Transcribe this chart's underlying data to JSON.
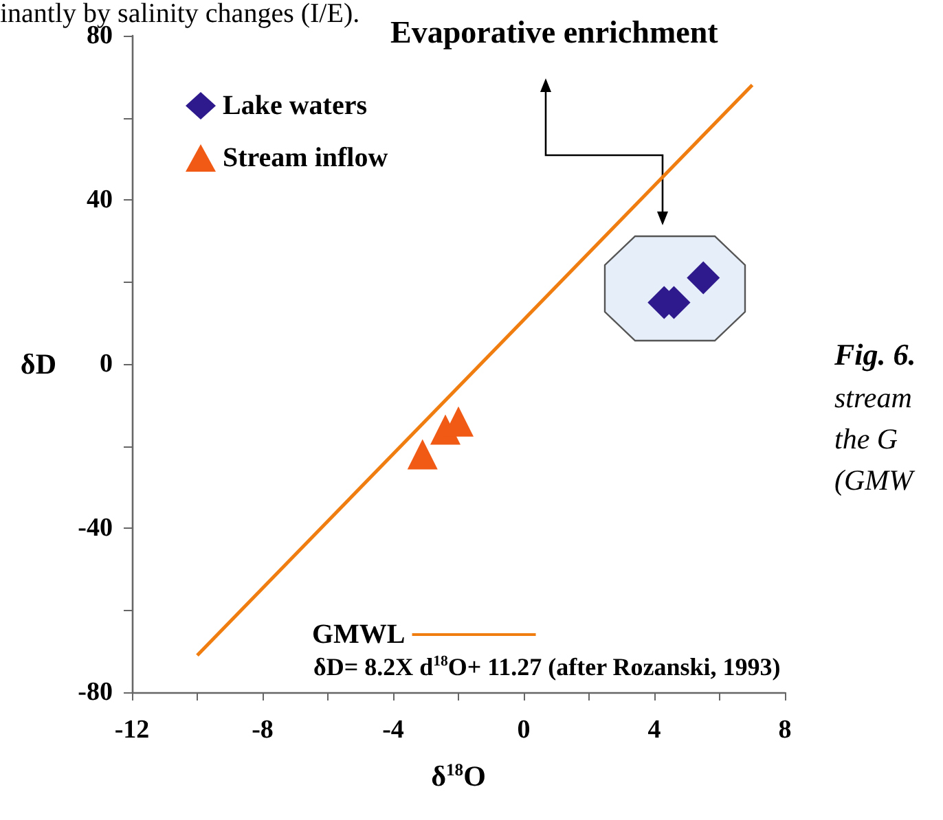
{
  "chart_data": {
    "type": "scatter",
    "xlabel": "δ$^{18}$O",
    "ylabel": "δD",
    "xlim": [
      -12,
      8
    ],
    "ylim": [
      -80,
      80
    ],
    "xticks": [
      -12,
      {
        "value": -10,
        "label": null
      },
      -8,
      {
        "value": -6,
        "label": null
      },
      -4,
      {
        "value": -2,
        "label": null
      },
      0,
      {
        "value": 2,
        "label": null
      },
      4,
      {
        "value": 6,
        "label": null
      },
      8
    ],
    "yticks": [
      -80,
      {
        "value": -60,
        "label": null
      },
      -40,
      {
        "value": -20,
        "label": null
      },
      0,
      {
        "value": 20,
        "label": null
      },
      40,
      {
        "value": 60,
        "label": null
      },
      80
    ],
    "grid": false,
    "legend": "top left",
    "series": [
      {
        "name": "Lake waters",
        "type": "scatter",
        "marker": "diamond",
        "color": "#2e1a8c",
        "x": [
          4.3,
          4.6,
          5.5
        ],
        "values": [
          15,
          15,
          21
        ]
      },
      {
        "name": "Stream inflow",
        "type": "scatter",
        "marker": "triangle",
        "color": "#f05a14",
        "x": [
          -3.1,
          -2.4,
          -2.0
        ],
        "values": [
          -22,
          -16,
          -14
        ]
      },
      {
        "name": "GMWL",
        "type": "line",
        "marker": "none",
        "color": "#f07d10",
        "x": [
          -10,
          7
        ],
        "values": [
          -71,
          68
        ]
      }
    ],
    "annotations": [
      "Evaporative enrichment",
      "δD= 8.2X d$^{18}$O+ 11.27 (after Rozanski, 1993)",
      "inantly by salinity changes (I/E).",
      "Fig. 6.",
      "stream",
      "the G",
      "(GMW"
    ]
  }
}
